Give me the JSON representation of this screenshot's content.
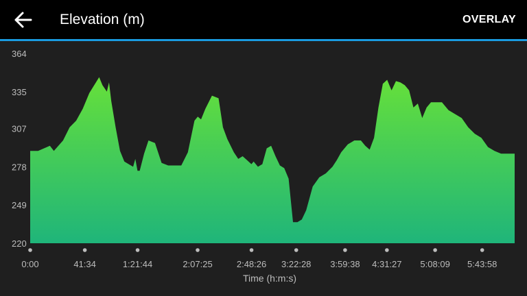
{
  "header": {
    "back_icon": "arrow-left-icon",
    "title": "Elevation (m)",
    "overlay_label": "OVERLAY"
  },
  "colors": {
    "background": "#1f1f1f",
    "topbar": "#000000",
    "accent": "#1a9be0",
    "fill_top": "#66e03a",
    "fill_bottom": "#1fb57a",
    "label": "#bdbdbd"
  },
  "chart_data": {
    "type": "area",
    "xlabel": "Time (h:m:s)",
    "ylabel": "",
    "y_ticks": [
      220,
      249,
      278,
      307,
      335,
      364
    ],
    "ylim": [
      220,
      364
    ],
    "x_ticks": [
      "0:00",
      "41:34",
      "1:21:44",
      "2:07:25",
      "2:48:26",
      "3:22:28",
      "3:59:38",
      "4:31:27",
      "5:08:09",
      "5:43:58"
    ],
    "x_tick_seconds": [
      0,
      2494,
      4904,
      7645,
      10106,
      12148,
      14378,
      16287,
      18489,
      20638
    ],
    "xlim": [
      0,
      22120
    ],
    "x": [
      0,
      360,
      900,
      1080,
      1500,
      1800,
      2100,
      2400,
      2700,
      3000,
      3150,
      3300,
      3500,
      3600,
      3700,
      3900,
      4100,
      4300,
      4500,
      4700,
      4800,
      4900,
      5000,
      5200,
      5400,
      5700,
      6000,
      6300,
      6600,
      6900,
      7200,
      7500,
      7650,
      7800,
      8000,
      8300,
      8600,
      8800,
      9000,
      9300,
      9500,
      9700,
      9900,
      10100,
      10200,
      10400,
      10600,
      10800,
      11000,
      11200,
      11400,
      11600,
      11800,
      12000,
      12200,
      12400,
      12600,
      12900,
      13200,
      13500,
      13800,
      14000,
      14200,
      14500,
      14800,
      15100,
      15300,
      15500,
      15700,
      15900,
      16100,
      16300,
      16500,
      16700,
      16900,
      17100,
      17300,
      17500,
      17700,
      17900,
      18100,
      18300,
      18500,
      18800,
      19100,
      19400,
      19700,
      20000,
      20300,
      20600,
      20900,
      21200,
      21500,
      21800,
      22120
    ],
    "y": [
      290,
      290,
      294,
      290,
      298,
      308,
      313,
      322,
      334,
      342,
      346,
      340,
      335,
      342,
      328,
      308,
      290,
      282,
      280,
      278,
      284,
      275,
      275,
      288,
      298,
      296,
      281,
      279,
      279,
      279,
      289,
      313,
      316,
      314,
      322,
      332,
      330,
      308,
      299,
      289,
      284,
      286,
      283,
      280,
      282,
      278,
      280,
      292,
      294,
      286,
      279,
      277,
      269,
      236,
      236,
      238,
      245,
      263,
      270,
      273,
      278,
      283,
      289,
      295,
      298,
      298,
      294,
      291,
      300,
      323,
      341,
      344,
      336,
      343,
      342,
      340,
      336,
      323,
      326,
      315,
      323,
      327,
      327,
      327,
      321,
      318,
      315,
      308,
      303,
      300,
      293,
      290,
      288,
      288,
      288
    ]
  }
}
